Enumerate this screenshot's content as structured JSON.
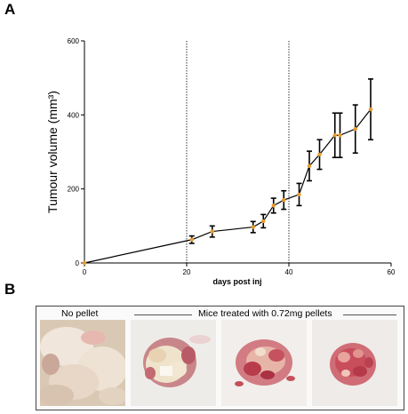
{
  "panels": {
    "a": "A",
    "b": "B"
  },
  "chart_data": {
    "type": "line",
    "xlabel": "days post inj",
    "ylabel": "Tumour volume (mm³)",
    "xlim": [
      0,
      60
    ],
    "ylim": [
      0,
      600
    ],
    "xticks": [
      0,
      20,
      40,
      60
    ],
    "yticks": [
      0,
      200,
      400,
      600
    ],
    "vlines": [
      20,
      40
    ],
    "x": [
      0,
      21,
      25,
      33,
      35,
      37,
      39,
      42,
      44,
      46,
      49,
      50,
      53,
      56
    ],
    "y": [
      0,
      63,
      85,
      97,
      113,
      155,
      170,
      185,
      262,
      293,
      345,
      345,
      362,
      415
    ],
    "err": [
      0,
      10,
      15,
      15,
      18,
      20,
      25,
      30,
      40,
      40,
      60,
      60,
      65,
      82
    ],
    "grid": false,
    "colors": {
      "line": "#000000",
      "marker": "#e89a2c"
    }
  },
  "photos": {
    "no_pellet_label": "No pellet",
    "treated_label": "Mice treated with 0.72mg pellets"
  }
}
